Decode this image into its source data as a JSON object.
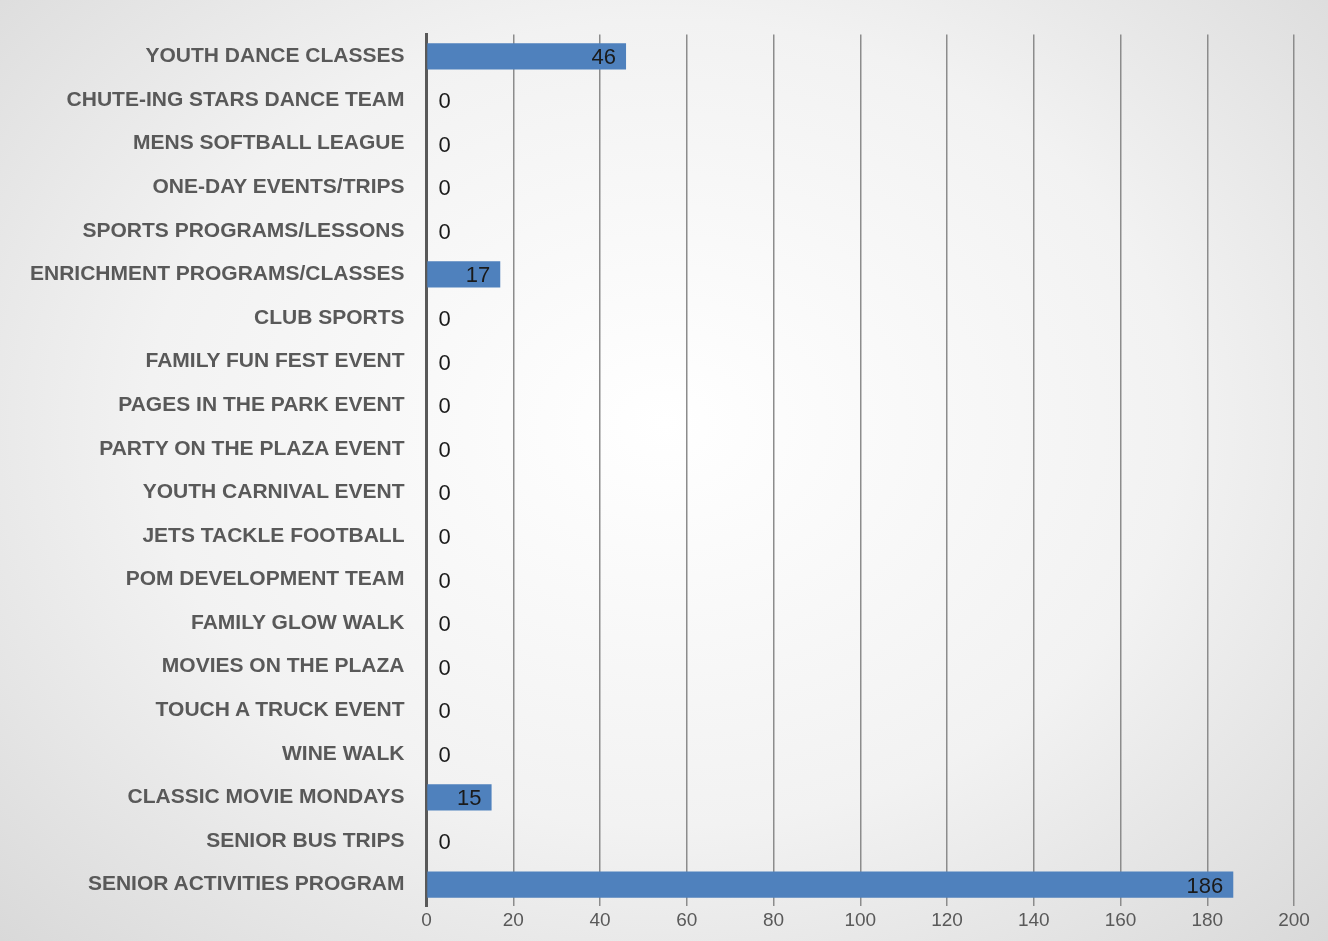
{
  "chart_data": {
    "type": "bar",
    "orientation": "horizontal",
    "categories": [
      "YOUTH DANCE CLASSES",
      "CHUTE-ING STARS DANCE TEAM",
      "MENS SOFTBALL LEAGUE",
      "ONE-DAY EVENTS/TRIPS",
      "SPORTS PROGRAMS/LESSONS",
      "ENRICHMENT PROGRAMS/CLASSES",
      "CLUB SPORTS",
      "FAMILY FUN FEST EVENT",
      "PAGES IN THE PARK EVENT",
      "PARTY ON THE PLAZA EVENT",
      "YOUTH CARNIVAL EVENT",
      "JETS TACKLE FOOTBALL",
      "POM DEVELOPMENT TEAM",
      "FAMILY GLOW WALK",
      "MOVIES ON THE PLAZA",
      "TOUCH A TRUCK EVENT",
      "WINE WALK",
      "CLASSIC MOVIE MONDAYS",
      "SENIOR BUS TRIPS",
      "SENIOR ACTIVITIES PROGRAM"
    ],
    "values": [
      46,
      0,
      0,
      0,
      0,
      17,
      0,
      0,
      0,
      0,
      0,
      0,
      0,
      0,
      0,
      0,
      0,
      15,
      0,
      186
    ],
    "color": "#4f81bd",
    "xlim": [
      0,
      200
    ],
    "xticks": [
      0,
      20,
      40,
      60,
      80,
      100,
      120,
      140,
      160,
      180,
      200
    ],
    "grid": "x",
    "legend": false,
    "data_labels": true
  }
}
